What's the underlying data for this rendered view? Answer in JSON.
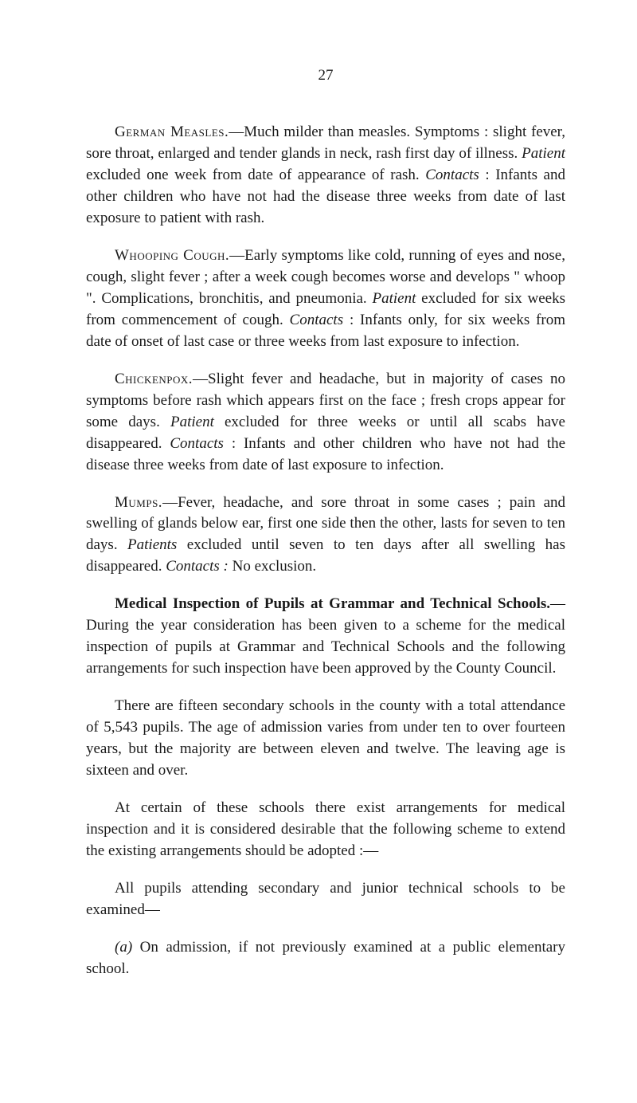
{
  "page_number": "27",
  "paragraphs": {
    "german_measles": {
      "heading": "German Measles.",
      "text": "—Much milder than measles. Symptoms : slight fever, sore throat, enlarged and tender glands in neck, rash first day of illness. ",
      "patient_label": "Patient",
      "patient_text": " excluded one week from date of appearance of rash. ",
      "contacts_label": "Contacts",
      "contacts_text": " : Infants and other children who have not had the disease three weeks from date of last exposure to patient with rash."
    },
    "whooping_cough": {
      "heading": "Whooping Cough.",
      "text": "—Early symptoms like cold, running of eyes and nose, cough, slight fever ; after a week cough becomes worse and develops \" whoop \". Complications, bronchitis, and pneumonia. ",
      "patient_label": "Patient",
      "patient_text": " excluded for six weeks from commencement of cough. ",
      "contacts_label": "Contacts",
      "contacts_text": " : Infants only, for six weeks from date of onset of last case or three weeks from last exposure to infection."
    },
    "chickenpox": {
      "heading": "Chickenpox.",
      "text": "—Slight fever and headache, but in majority of cases no symptoms before rash which appears first on the face ; fresh crops appear for some days. ",
      "patient_label": "Patient",
      "patient_text": " excluded for three weeks or until all scabs have disappeared. ",
      "contacts_label": "Contacts",
      "contacts_text": " : Infants and other children who have not had the disease three weeks from date of last exposure to infection."
    },
    "mumps": {
      "heading": "Mumps.",
      "text": "—Fever, headache, and sore throat in some cases ; pain and swelling of glands below ear, first one side then the other, lasts for seven to ten days. ",
      "patients_label": "Patients",
      "patients_text": " excluded until seven to ten days after all swelling has disappeared. ",
      "contacts_label": "Contacts :",
      "contacts_text": " No exclusion."
    },
    "medical_inspection": {
      "heading": "Medical Inspection of Pupils at Grammar and Technical Schools.",
      "text": "—During the year consideration has been given to a scheme for the medical inspection of pupils at Grammar and Technical Schools and the following arrangements for such inspection have been approved by the County Council."
    },
    "fifteen_schools": {
      "text": "There are fifteen secondary schools in the county with a total attendance of 5,543 pupils. The age of admission varies from under ten to over fourteen years, but the majority are between eleven and twelve. The leaving age is sixteen and over."
    },
    "certain_schools": {
      "text": "At certain of these schools there exist arrangements for medical inspection and it is considered desirable that the following scheme to extend the existing arrangements should be adopted :—"
    },
    "all_pupils": {
      "text": "All pupils attending secondary and junior technical schools to be examined—"
    },
    "item_a": {
      "label": "(a)",
      "text": " On admission, if not previously examined at a public elementary school."
    }
  }
}
